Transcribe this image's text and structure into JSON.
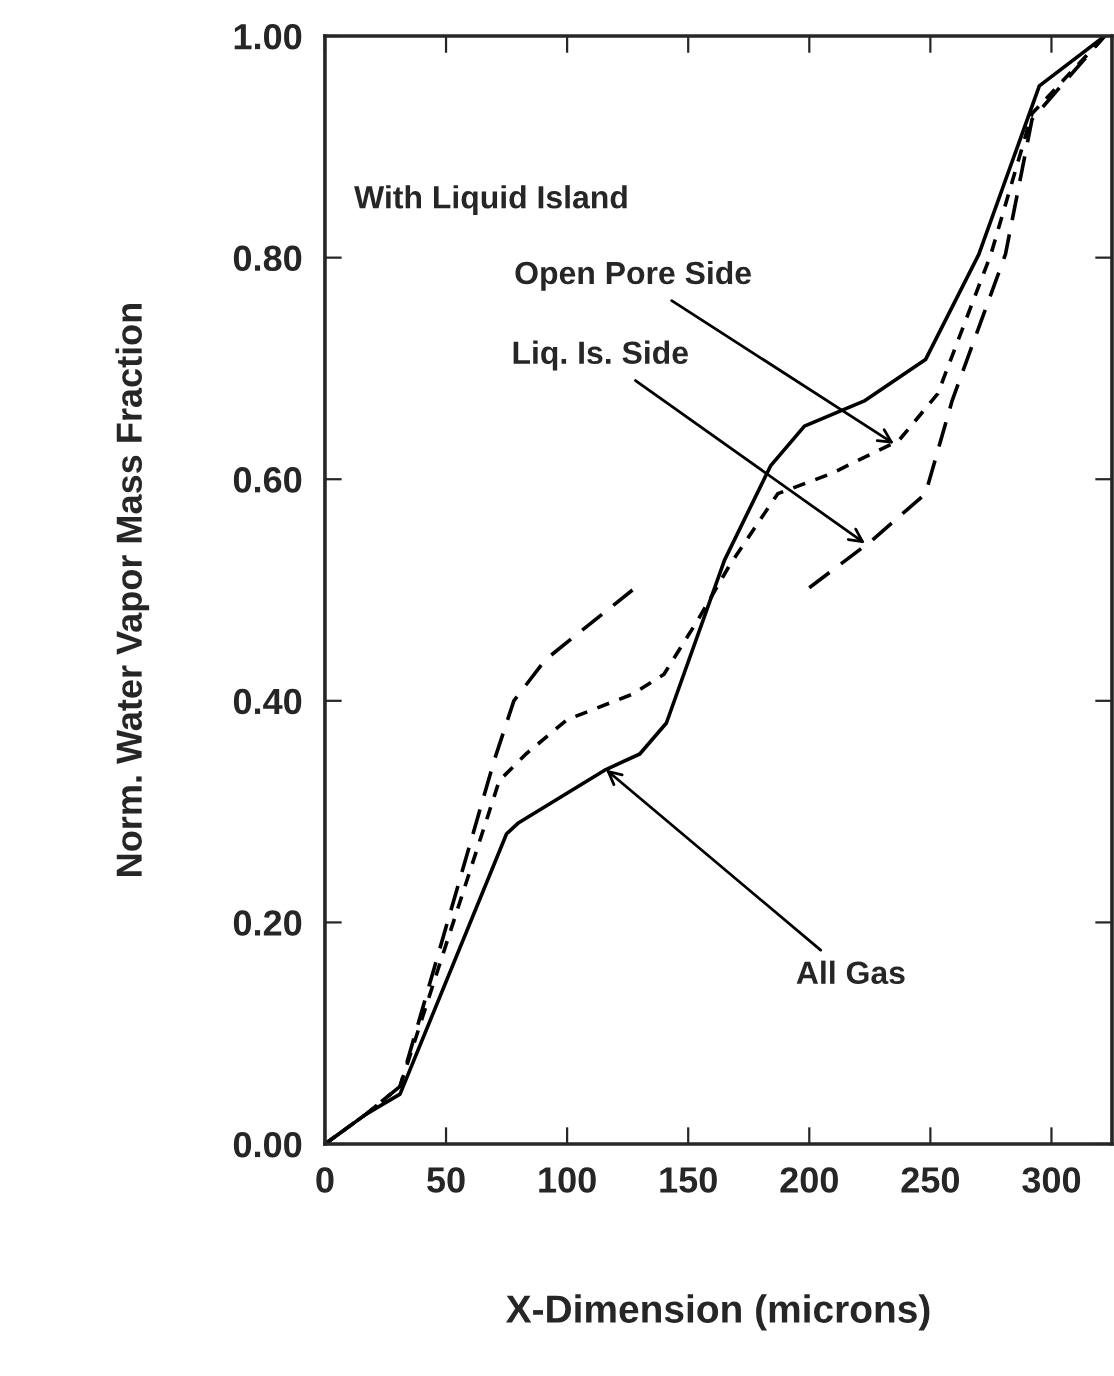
{
  "chart_data": {
    "type": "line",
    "xlabel": "X-Dimension (microns)",
    "ylabel": "Norm. Water Vapor Mass Fraction",
    "series": [
      {
        "color": "#000000",
        "line_style": "solid",
        "x": [
          0,
          17,
          31,
          75,
          80,
          116,
          130,
          141,
          165,
          184,
          198,
          223,
          248,
          270,
          295,
          322
        ],
        "values": [
          0,
          0.027,
          0.045,
          0.28,
          0.29,
          0.338,
          0.352,
          0.38,
          0.527,
          0.612,
          0.648,
          0.671,
          0.708,
          0.803,
          0.955,
          1.0
        ]
      },
      {
        "color": "#000000",
        "line_style": "dotted",
        "x": [
          0,
          17,
          31,
          72,
          83,
          100,
          127,
          140,
          154,
          167,
          187,
          209,
          237,
          253,
          275,
          292,
          322
        ],
        "values": [
          0,
          0.027,
          0.052,
          0.328,
          0.352,
          0.383,
          0.406,
          0.424,
          0.473,
          0.522,
          0.587,
          0.605,
          0.635,
          0.677,
          0.803,
          0.93,
          1.0
        ]
      },
      {
        "color": "#000000",
        "line_style": "dashed",
        "x": [
          0,
          17,
          31,
          70,
          78,
          91,
          104,
          127,
          160,
          200,
          226,
          248,
          259,
          281,
          292,
          322
        ],
        "values": [
          0,
          0.027,
          0.052,
          0.347,
          0.4,
          0.437,
          0.46,
          0.5,
          null,
          0.502,
          0.545,
          0.587,
          0.671,
          0.803,
          0.925,
          1.0
        ]
      }
    ],
    "annotations": [
      "With Liquid Island",
      {
        "text": "Open Pore Side",
        "x": 235,
        "y": 0.632
      },
      {
        "text": "Liq. Is. Side",
        "x": 223,
        "y": 0.542
      },
      {
        "text": "All Gas",
        "x": 116,
        "y": 0.338
      }
    ],
    "xlim": [
      0,
      325
    ],
    "ylim": [
      0,
      1.0
    ],
    "xticks": [
      0,
      50,
      100,
      150,
      200,
      250,
      300
    ],
    "yticks": [
      {
        "value": 0,
        "label": "0.00"
      },
      {
        "value": 0.2,
        "label": "0.20"
      },
      {
        "value": 0.4,
        "label": "0.40"
      },
      {
        "value": 0.6,
        "label": "0.60"
      },
      {
        "value": 0.8,
        "label": "0.80"
      },
      {
        "value": 1.0,
        "label": "1.00"
      }
    ],
    "grid": false,
    "legend": false
  }
}
